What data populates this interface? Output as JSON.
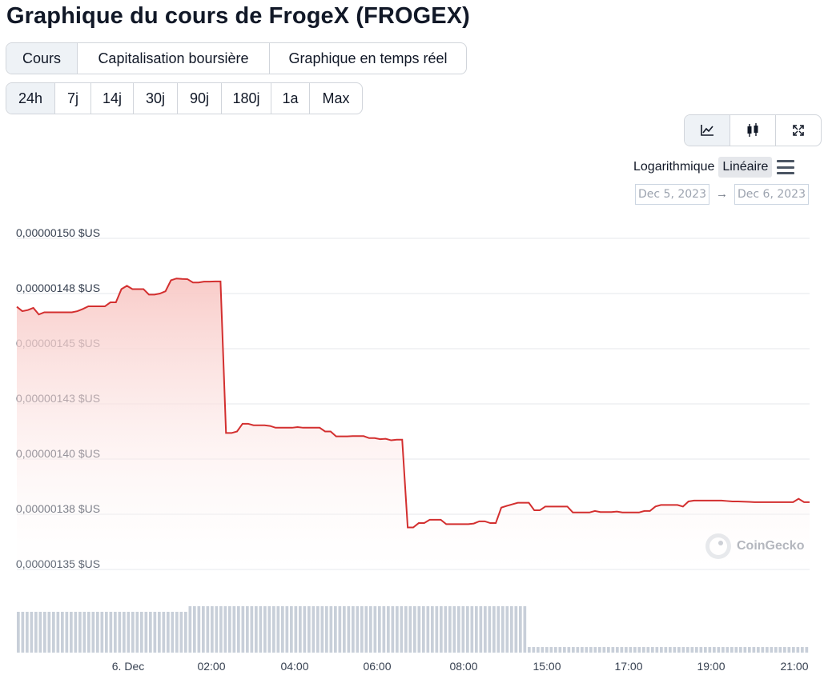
{
  "title": "Graphique du cours de FrogeX (FROGEX)",
  "view_tabs": [
    {
      "label": "Cours",
      "active": true
    },
    {
      "label": "Capitalisation boursière",
      "active": false
    },
    {
      "label": "Graphique en temps réel",
      "active": false
    }
  ],
  "range_tabs": [
    {
      "label": "24h",
      "active": true
    },
    {
      "label": "7j",
      "active": false
    },
    {
      "label": "14j",
      "active": false
    },
    {
      "label": "30j",
      "active": false
    },
    {
      "label": "90j",
      "active": false
    },
    {
      "label": "180j",
      "active": false
    },
    {
      "label": "1a",
      "active": false
    },
    {
      "label": "Max",
      "active": false
    }
  ],
  "chart_type_buttons": [
    {
      "icon": "line-chart-icon",
      "active": true
    },
    {
      "icon": "candlestick-icon",
      "active": false
    },
    {
      "icon": "fullscreen-icon",
      "active": false
    }
  ],
  "scale": {
    "log_label": "Logarithmique",
    "linear_label": "Linéaire",
    "active": "linear"
  },
  "date_range": {
    "from": "Dec 5, 2023",
    "arrow": "→",
    "to": "Dec 6, 2023"
  },
  "watermark": "CoinGecko",
  "colors": {
    "line": "#d32f2f",
    "fill_top": "#f8c9c6",
    "volume": "#c8cfd9",
    "grid": "#e5e7eb"
  },
  "chart_data": {
    "type": "area",
    "title": "",
    "xlabel": "",
    "ylabel": "",
    "ylim": [
      1.35e-06,
      1.5e-06
    ],
    "y_ticks": [
      {
        "value": 1.5e-06,
        "label": "0,00000150 $US"
      },
      {
        "value": 1.475e-06,
        "label": "0,00000148 $US"
      },
      {
        "value": 1.45e-06,
        "label": "0,00000145 $US"
      },
      {
        "value": 1.425e-06,
        "label": "0,00000143 $US"
      },
      {
        "value": 1.4e-06,
        "label": "0,00000140 $US"
      },
      {
        "value": 1.375e-06,
        "label": "0,00000138 $US"
      },
      {
        "value": 1.35e-06,
        "label": "0,00000135 $US"
      }
    ],
    "x_ticks": [
      "6. Dec",
      "02:00",
      "04:00",
      "06:00",
      "08:00",
      "15:00",
      "17:00",
      "19:00",
      "21:00"
    ],
    "grid": true,
    "series": [
      {
        "values": [
          1.469e-06,
          1.467e-06,
          1.4675e-06,
          1.4685e-06,
          1.4655e-06,
          1.4665e-06,
          1.4665e-06,
          1.4665e-06,
          1.4665e-06,
          1.4665e-06,
          1.4665e-06,
          1.467e-06,
          1.468e-06,
          1.4692e-06,
          1.4692e-06,
          1.4692e-06,
          1.4692e-06,
          1.471e-06,
          1.471e-06,
          1.477e-06,
          1.4785e-06,
          1.477e-06,
          1.477e-06,
          1.477e-06,
          1.4745e-06,
          1.4745e-06,
          1.475e-06,
          1.476e-06,
          1.481e-06,
          1.4818e-06,
          1.4816e-06,
          1.4815e-06,
          1.48e-06,
          1.48e-06,
          1.4804e-06,
          1.4804e-06,
          1.4805e-06,
          1.4805e-06,
          1.4118e-06,
          1.4118e-06,
          1.4125e-06,
          1.416e-06,
          1.416e-06,
          1.4153e-06,
          1.4153e-06,
          1.4153e-06,
          1.415e-06,
          1.4142e-06,
          1.4142e-06,
          1.4142e-06,
          1.4142e-06,
          1.4145e-06,
          1.4142e-06,
          1.4142e-06,
          1.4142e-06,
          1.4142e-06,
          1.4125e-06,
          1.4125e-06,
          1.4103e-06,
          1.4103e-06,
          1.4103e-06,
          1.4104e-06,
          1.4104e-06,
          1.4104e-06,
          1.4095e-06,
          1.4095e-06,
          1.409e-06,
          1.4092e-06,
          1.4085e-06,
          1.4088e-06,
          1.4088e-06,
          1.369e-06,
          1.369e-06,
          1.371e-06,
          1.371e-06,
          1.3725e-06,
          1.3725e-06,
          1.3725e-06,
          1.3705e-06,
          1.3705e-06,
          1.3705e-06,
          1.3705e-06,
          1.3705e-06,
          1.3708e-06,
          1.3718e-06,
          1.3718e-06,
          1.371e-06,
          1.371e-06,
          1.378e-06,
          1.3788e-06,
          1.3795e-06,
          1.3802e-06,
          1.3802e-06,
          1.3802e-06,
          1.3768e-06,
          1.3768e-06,
          1.3785e-06,
          1.3785e-06,
          1.3785e-06,
          1.3785e-06,
          1.3785e-06,
          1.3758e-06,
          1.3758e-06,
          1.3758e-06,
          1.3758e-06,
          1.3765e-06,
          1.376e-06,
          1.376e-06,
          1.376e-06,
          1.3762e-06,
          1.3758e-06,
          1.3758e-06,
          1.3758e-06,
          1.3758e-06,
          1.3765e-06,
          1.3765e-06,
          1.3785e-06,
          1.3792e-06,
          1.3792e-06,
          1.3792e-06,
          1.3792e-06,
          1.3785e-06,
          1.3808e-06,
          1.3812e-06,
          1.3812e-06,
          1.3812e-06,
          1.3812e-06,
          1.3812e-06,
          1.3812e-06,
          1.381e-06,
          1.3808e-06,
          1.3808e-06,
          1.3807e-06,
          1.3806e-06,
          1.3805e-06,
          1.3805e-06,
          1.3805e-06,
          1.3805e-06,
          1.3805e-06,
          1.3805e-06,
          1.3805e-06,
          1.3805e-06,
          1.382e-06,
          1.3805e-06,
          1.3805e-06
        ]
      }
    ],
    "volume_values": [
      0.88,
      0.88,
      0.88,
      0.88,
      0.88,
      0.88,
      0.88,
      0.88,
      0.88,
      0.88,
      0.88,
      0.88,
      0.88,
      0.88,
      0.88,
      0.88,
      0.88,
      0.88,
      0.88,
      0.88,
      0.88,
      0.88,
      0.88,
      0.88,
      0.88,
      0.88,
      0.88,
      0.88,
      0.88,
      0.88,
      0.88,
      0.88,
      0.88,
      0.88,
      0.88,
      0.88,
      0.88,
      0.88,
      0.88,
      1.0,
      1.0,
      1.0,
      1.0,
      1.0,
      1.0,
      1.0,
      1.0,
      1.0,
      1.0,
      1.0,
      1.0,
      1.0,
      1.0,
      1.0,
      1.0,
      1.0,
      1.0,
      1.0,
      1.0,
      1.0,
      1.0,
      1.0,
      1.0,
      1.0,
      1.0,
      1.0,
      1.0,
      1.0,
      1.0,
      1.0,
      1.0,
      1.0,
      1.0,
      1.0,
      1.0,
      1.0,
      1.0,
      1.0,
      1.0,
      1.0,
      1.0,
      1.0,
      1.0,
      1.0,
      1.0,
      1.0,
      1.0,
      1.0,
      1.0,
      1.0,
      1.0,
      1.0,
      1.0,
      1.0,
      1.0,
      1.0,
      1.0,
      1.0,
      1.0,
      1.0,
      1.0,
      1.0,
      1.0,
      1.0,
      1.0,
      1.0,
      1.0,
      1.0,
      1.0,
      1.0,
      1.0,
      1.0,
      1.0,
      1.0,
      1.0,
      1.0,
      0.12,
      0.12,
      0.12,
      0.12,
      0.12,
      0.12,
      0.12,
      0.12,
      0.12,
      0.12,
      0.12,
      0.12,
      0.12,
      0.12,
      0.12,
      0.12,
      0.12,
      0.12,
      0.12,
      0.12,
      0.12,
      0.12,
      0.12,
      0.12,
      0.12,
      0.12,
      0.12,
      0.12,
      0.12,
      0.12,
      0.12,
      0.12,
      0.12,
      0.12,
      0.12,
      0.12,
      0.12,
      0.12,
      0.12,
      0.12,
      0.12,
      0.12,
      0.12,
      0.12,
      0.12,
      0.12,
      0.12,
      0.12,
      0.12,
      0.12,
      0.12,
      0.12,
      0.12,
      0.12,
      0.12,
      0.12,
      0.12,
      0.12,
      0.12,
      0.12,
      0.12,
      0.12,
      0.12,
      0.12
    ]
  }
}
